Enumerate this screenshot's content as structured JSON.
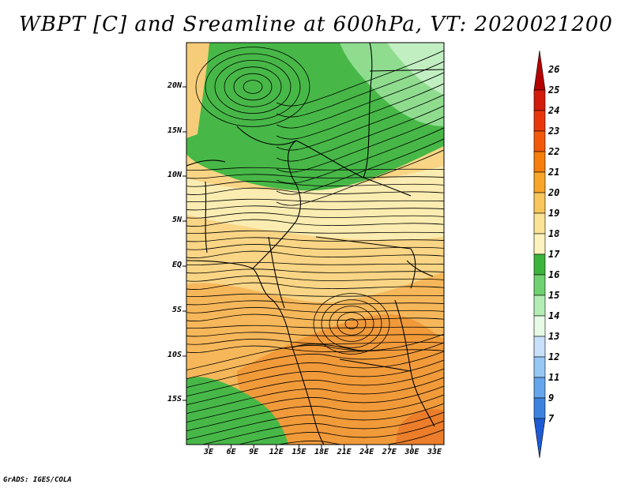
{
  "title": "WBPT [C] and Sreamline at 600hPa, VT: 2020021200",
  "footer": "GrADS: IGES/COLA",
  "lat_labels": [
    "20N",
    "15N",
    "10N",
    "5N",
    "EQ",
    "5S",
    "10S",
    "15S"
  ],
  "lon_labels": [
    "3E",
    "6E",
    "9E",
    "12E",
    "15E",
    "18E",
    "21E",
    "24E",
    "27E",
    "30E",
    "33E"
  ],
  "colorbar": {
    "labels": [
      "26",
      "25",
      "24",
      "23",
      "22",
      "21",
      "20",
      "19",
      "18",
      "17",
      "16",
      "15",
      "14",
      "13",
      "12",
      "11",
      "9",
      "7"
    ],
    "colors": [
      "#b40000",
      "#d21c0c",
      "#e8370c",
      "#f25a0a",
      "#f57f0a",
      "#f7a62a",
      "#f7c65c",
      "#fae396",
      "#fcf2be",
      "#3cb43c",
      "#6fd16f",
      "#b4edb4",
      "#e6fbe6",
      "#c8e0fa",
      "#96c8f5",
      "#64a5eb",
      "#3c82e1",
      "#1e5ad2"
    ]
  }
}
